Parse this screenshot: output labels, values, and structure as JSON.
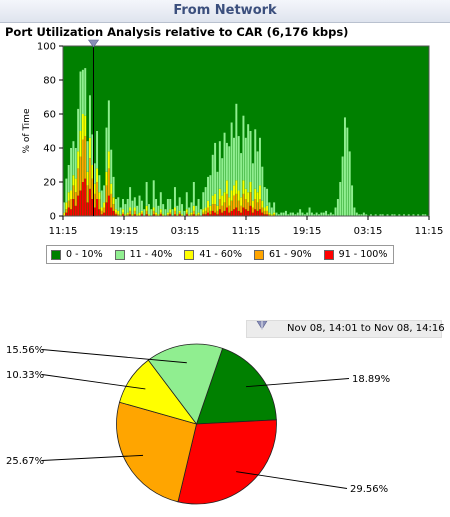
{
  "header": {
    "title": "From Network"
  },
  "chart_data": [
    {
      "type": "bar",
      "stacked": true,
      "title": "Port Utilization Analysis relative to CAR (6,176 kbps)",
      "ylabel": "% of Time",
      "ylim": [
        0,
        100
      ],
      "yticks": [
        "0",
        "20",
        "40",
        "60",
        "80",
        "100"
      ],
      "xticks": [
        "11:15",
        "19:15",
        "03:15",
        "11:15",
        "19:15",
        "03:15",
        "11:15"
      ],
      "legend_position": "bottom",
      "series": [
        {
          "name": "91 - 100%",
          "color": "#ff0000"
        },
        {
          "name": "61 - 90%",
          "color": "#ffa500"
        },
        {
          "name": "41 - 60%",
          "color": "#ffff00"
        },
        {
          "name": "11 - 40%",
          "color": "#90ee90"
        },
        {
          "name": "0 - 10%",
          "color": "#008000"
        }
      ],
      "legend_order": [
        "0 - 10%",
        "11 - 40%",
        "41 - 60%",
        "61 - 90%",
        "91 - 100%"
      ],
      "bars": [
        [
          0,
          0,
          2,
          6
        ],
        [
          2,
          2,
          4,
          14
        ],
        [
          5,
          4,
          5,
          16
        ],
        [
          4,
          6,
          5,
          25
        ],
        [
          10,
          8,
          6,
          20
        ],
        [
          6,
          8,
          8,
          18
        ],
        [
          12,
          16,
          10,
          25
        ],
        [
          15,
          20,
          15,
          35
        ],
        [
          20,
          25,
          15,
          26
        ],
        [
          22,
          25,
          12,
          28
        ],
        [
          8,
          10,
          8,
          18
        ],
        [
          16,
          18,
          12,
          25
        ],
        [
          10,
          12,
          8,
          18
        ],
        [
          5,
          8,
          6,
          12
        ],
        [
          10,
          10,
          8,
          22
        ],
        [
          4,
          6,
          4,
          10
        ],
        [
          1,
          2,
          2,
          10
        ],
        [
          2,
          3,
          3,
          10
        ],
        [
          8,
          10,
          8,
          26
        ],
        [
          12,
          16,
          10,
          30
        ],
        [
          5,
          8,
          6,
          20
        ],
        [
          3,
          4,
          4,
          12
        ],
        [
          1,
          1,
          2,
          6
        ],
        [
          0,
          1,
          2,
          8
        ],
        [
          0,
          0,
          1,
          4
        ],
        [
          1,
          1,
          2,
          6
        ],
        [
          0,
          0,
          1,
          6
        ],
        [
          0,
          1,
          1,
          8
        ],
        [
          1,
          2,
          2,
          12
        ],
        [
          0,
          0,
          1,
          8
        ],
        [
          1,
          2,
          2,
          6
        ],
        [
          0,
          0,
          1,
          5
        ],
        [
          0,
          0,
          2,
          10
        ],
        [
          1,
          1,
          1,
          6
        ],
        [
          0,
          0,
          0,
          4
        ],
        [
          1,
          2,
          3,
          14
        ],
        [
          0,
          0,
          1,
          6
        ],
        [
          0,
          0,
          0,
          4
        ],
        [
          1,
          2,
          2,
          16
        ],
        [
          0,
          1,
          1,
          8
        ],
        [
          0,
          0,
          1,
          5
        ],
        [
          1,
          1,
          2,
          10
        ],
        [
          0,
          0,
          1,
          6
        ],
        [
          0,
          0,
          0,
          4
        ],
        [
          0,
          1,
          1,
          8
        ],
        [
          1,
          1,
          2,
          6
        ],
        [
          0,
          0,
          0,
          4
        ],
        [
          1,
          2,
          2,
          12
        ],
        [
          0,
          0,
          1,
          5
        ],
        [
          1,
          1,
          1,
          8
        ],
        [
          0,
          0,
          1,
          6
        ],
        [
          0,
          0,
          0,
          3
        ],
        [
          1,
          1,
          2,
          10
        ],
        [
          0,
          0,
          1,
          4
        ],
        [
          0,
          1,
          1,
          6
        ],
        [
          1,
          2,
          3,
          14
        ],
        [
          0,
          0,
          1,
          5
        ],
        [
          0,
          1,
          1,
          8
        ],
        [
          0,
          0,
          0,
          4
        ],
        [
          1,
          1,
          2,
          10
        ],
        [
          1,
          2,
          2,
          12
        ],
        [
          2,
          3,
          4,
          14
        ],
        [
          1,
          2,
          3,
          18
        ],
        [
          3,
          4,
          5,
          24
        ],
        [
          2,
          5,
          6,
          30
        ],
        [
          1,
          2,
          3,
          20
        ],
        [
          4,
          6,
          6,
          28
        ],
        [
          2,
          4,
          6,
          22
        ],
        [
          3,
          5,
          6,
          35
        ],
        [
          5,
          8,
          8,
          22
        ],
        [
          2,
          4,
          5,
          30
        ],
        [
          3,
          6,
          6,
          40
        ],
        [
          4,
          8,
          6,
          28
        ],
        [
          5,
          8,
          8,
          45
        ],
        [
          3,
          6,
          6,
          32
        ],
        [
          2,
          4,
          5,
          26
        ],
        [
          5,
          8,
          8,
          38
        ],
        [
          4,
          6,
          6,
          30
        ],
        [
          3,
          5,
          6,
          40
        ],
        [
          6,
          8,
          6,
          30
        ],
        [
          2,
          3,
          4,
          22
        ],
        [
          4,
          6,
          6,
          35
        ],
        [
          3,
          5,
          6,
          24
        ],
        [
          4,
          6,
          8,
          28
        ],
        [
          2,
          3,
          4,
          20
        ],
        [
          1,
          2,
          2,
          12
        ],
        [
          1,
          2,
          3,
          10
        ],
        [
          0,
          1,
          1,
          6
        ],
        [
          0,
          0,
          1,
          4
        ],
        [
          0,
          1,
          1,
          6
        ],
        [
          0,
          0,
          0,
          2
        ],
        [
          0,
          0,
          0,
          1
        ],
        [
          0,
          0,
          0,
          2
        ],
        [
          0,
          0,
          0,
          2
        ],
        [
          0,
          0,
          0,
          3
        ],
        [
          0,
          0,
          0,
          1
        ],
        [
          0,
          0,
          0,
          2
        ],
        [
          0,
          0,
          0,
          2
        ],
        [
          0,
          0,
          0,
          1
        ],
        [
          0,
          0,
          0,
          2
        ],
        [
          0,
          0,
          0,
          4
        ],
        [
          0,
          0,
          0,
          2
        ],
        [
          0,
          0,
          0,
          1
        ],
        [
          0,
          0,
          0,
          2
        ],
        [
          0,
          0,
          0,
          5
        ],
        [
          0,
          0,
          0,
          2
        ],
        [
          0,
          0,
          0,
          1
        ],
        [
          0,
          0,
          0,
          2
        ],
        [
          0,
          0,
          0,
          1
        ],
        [
          0,
          0,
          0,
          2
        ],
        [
          0,
          0,
          0,
          2
        ],
        [
          0,
          0,
          0,
          3
        ],
        [
          0,
          0,
          0,
          1
        ],
        [
          0,
          0,
          0,
          2
        ],
        [
          0,
          0,
          0,
          1
        ],
        [
          0,
          0,
          0,
          5
        ],
        [
          0,
          0,
          0,
          10
        ],
        [
          0,
          0,
          0,
          20
        ],
        [
          0,
          0,
          0,
          35
        ],
        [
          0,
          0,
          0,
          58
        ],
        [
          0,
          0,
          0,
          52
        ],
        [
          0,
          0,
          0,
          38
        ],
        [
          0,
          0,
          0,
          18
        ],
        [
          0,
          0,
          0,
          5
        ],
        [
          0,
          0,
          0,
          2
        ],
        [
          0,
          0,
          0,
          1
        ],
        [
          0,
          0,
          0,
          1
        ],
        [
          0,
          0,
          0,
          2
        ],
        [
          0,
          0,
          0,
          1
        ],
        [
          0,
          0,
          0,
          0
        ],
        [
          0,
          0,
          0,
          1
        ],
        [
          0,
          0,
          0,
          0
        ],
        [
          0,
          0,
          0,
          1
        ],
        [
          0,
          0,
          0,
          0
        ],
        [
          0,
          0,
          0,
          1
        ],
        [
          0,
          0,
          0,
          1
        ],
        [
          0,
          0,
          0,
          0
        ],
        [
          0,
          0,
          0,
          1
        ],
        [
          0,
          0,
          0,
          0
        ],
        [
          0,
          0,
          0,
          1
        ],
        [
          0,
          0,
          0,
          1
        ],
        [
          0,
          0,
          0,
          0
        ],
        [
          0,
          0,
          0,
          1
        ],
        [
          0,
          0,
          0,
          0
        ],
        [
          0,
          0,
          0,
          1
        ],
        [
          0,
          0,
          0,
          0
        ],
        [
          0,
          0,
          0,
          1
        ],
        [
          0,
          0,
          0,
          0
        ],
        [
          0,
          0,
          0,
          1
        ],
        [
          0,
          0,
          0,
          0
        ],
        [
          0,
          0,
          0,
          1
        ],
        [
          0,
          0,
          0,
          0
        ],
        [
          0,
          0,
          0,
          1
        ],
        [
          0,
          0,
          0,
          1
        ],
        [
          0,
          0,
          0,
          0
        ]
      ],
      "marker_time": "15:15"
    },
    {
      "type": "pie",
      "slices": [
        {
          "label": "18.89%",
          "value": 18.89,
          "color": "#008000"
        },
        {
          "label": "29.56%",
          "value": 29.56,
          "color": "#ff0000"
        },
        {
          "label": "25.67%",
          "value": 25.67,
          "color": "#ffa500"
        },
        {
          "label": "10.33%",
          "value": 10.33,
          "color": "#ffff00"
        },
        {
          "label": "15.56%",
          "value": 15.56,
          "color": "#90ee90"
        }
      ],
      "legend_position": "none"
    }
  ],
  "time_range": {
    "text": "Nov 08, 14:01 to Nov 08, 14:16"
  }
}
